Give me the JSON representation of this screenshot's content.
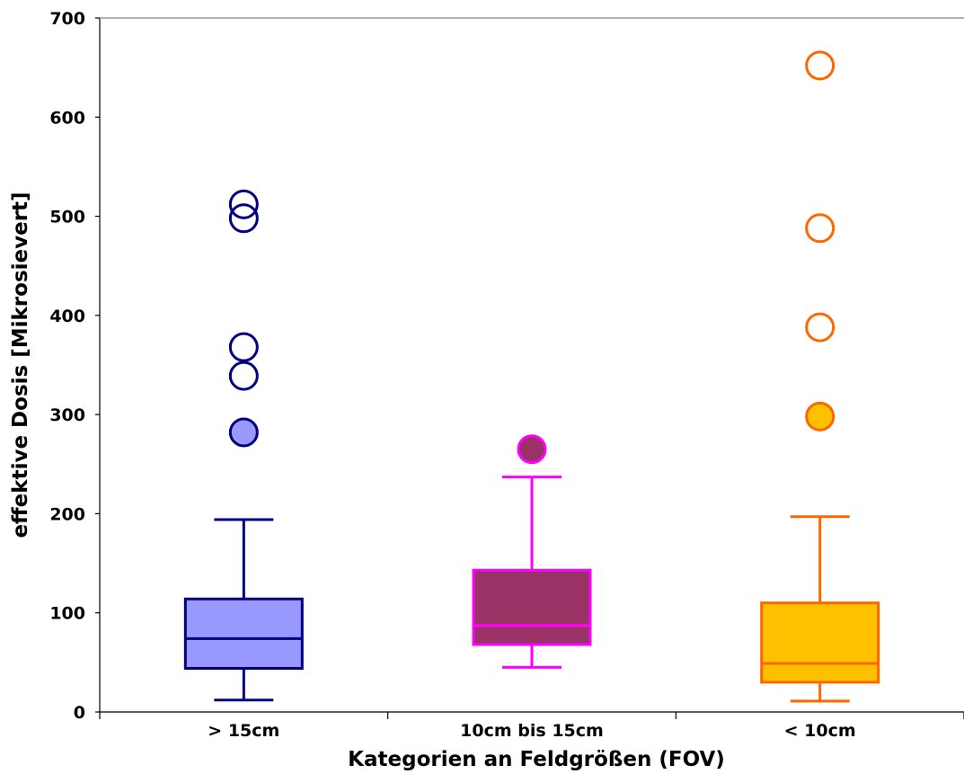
{
  "chart_data": {
    "type": "boxplot",
    "title": "",
    "xlabel": "Kategorien an Feldgrößen (FOV)",
    "ylabel": "effektive Dosis [Mikrosievert]",
    "ylim": [
      0,
      700
    ],
    "yticks": [
      "0",
      "100",
      "200",
      "300",
      "400",
      "500",
      "600",
      "700"
    ],
    "grid": false,
    "categories": [
      "> 15cm",
      "10cm bis 15cm",
      "< 10cm"
    ],
    "boxes": [
      {
        "category": "> 15cm",
        "whisker_low": 12,
        "q1": 44,
        "median": 74,
        "q3": 114,
        "whisker_high": 194,
        "outliers_filled": [
          282
        ],
        "outliers_open": [
          339,
          368,
          498,
          512
        ],
        "fill_color": "#9999ff",
        "line_color": "#000080"
      },
      {
        "category": "10cm bis 15cm",
        "whisker_low": 45,
        "q1": 68,
        "median": 87,
        "q3": 143,
        "whisker_high": 237,
        "outliers_filled": [
          265
        ],
        "outliers_open": [],
        "fill_color": "#993366",
        "line_color": "#ff00ff"
      },
      {
        "category": "< 10cm",
        "whisker_low": 11,
        "q1": 30,
        "median": 49,
        "q3": 110,
        "whisker_high": 197,
        "outliers_filled": [
          298
        ],
        "outliers_open": [
          388,
          488,
          652
        ],
        "fill_color": "#ffc000",
        "line_color": "#ff6600"
      }
    ]
  }
}
